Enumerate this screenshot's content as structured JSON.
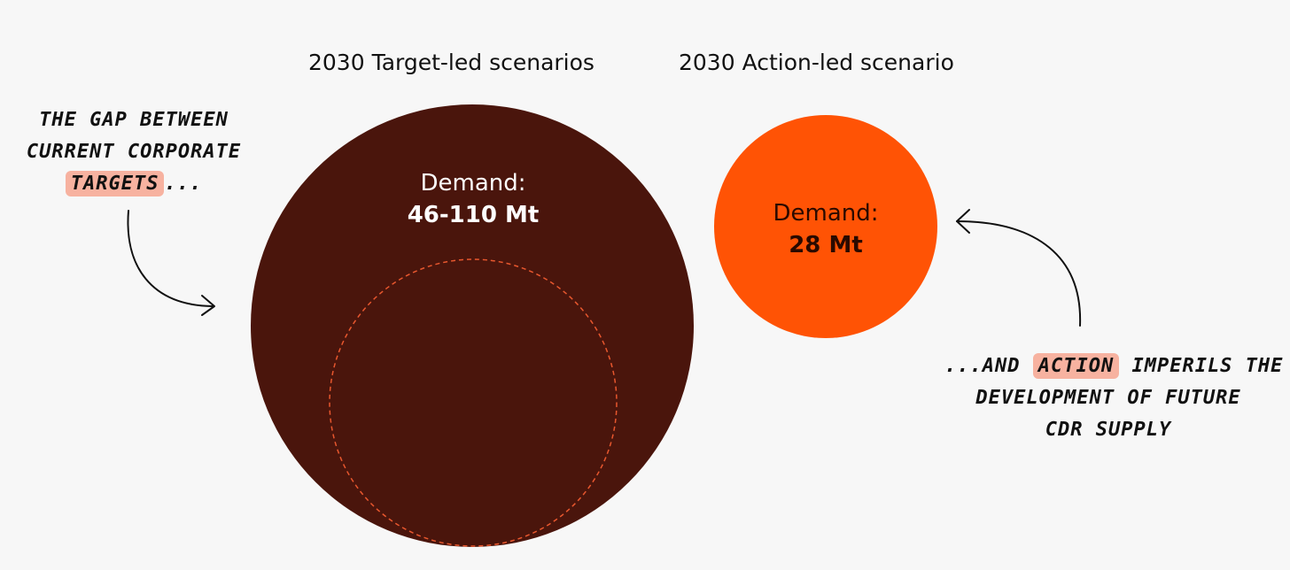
{
  "headings": {
    "target": "2030 Target-led scenarios",
    "action": "2030 Action-led scenario"
  },
  "target_circle": {
    "label": "Demand:",
    "value": "46-110 Mt",
    "fill": "#4a150c",
    "inner_outline": "#e8572e"
  },
  "action_circle": {
    "label": "Demand:",
    "value": "28 Mt",
    "fill": "#ff5305"
  },
  "note_left": {
    "line1": "The gap between",
    "line2": "current corporate",
    "highlight": "targets",
    "trail": "..."
  },
  "note_right": {
    "lead": "...and",
    "highlight": "action",
    "rest": "imperils the",
    "line2": "development of future",
    "line3": "CDR supply"
  },
  "colors": {
    "highlight": "#f7b2a0",
    "background": "#f7f7f7"
  }
}
